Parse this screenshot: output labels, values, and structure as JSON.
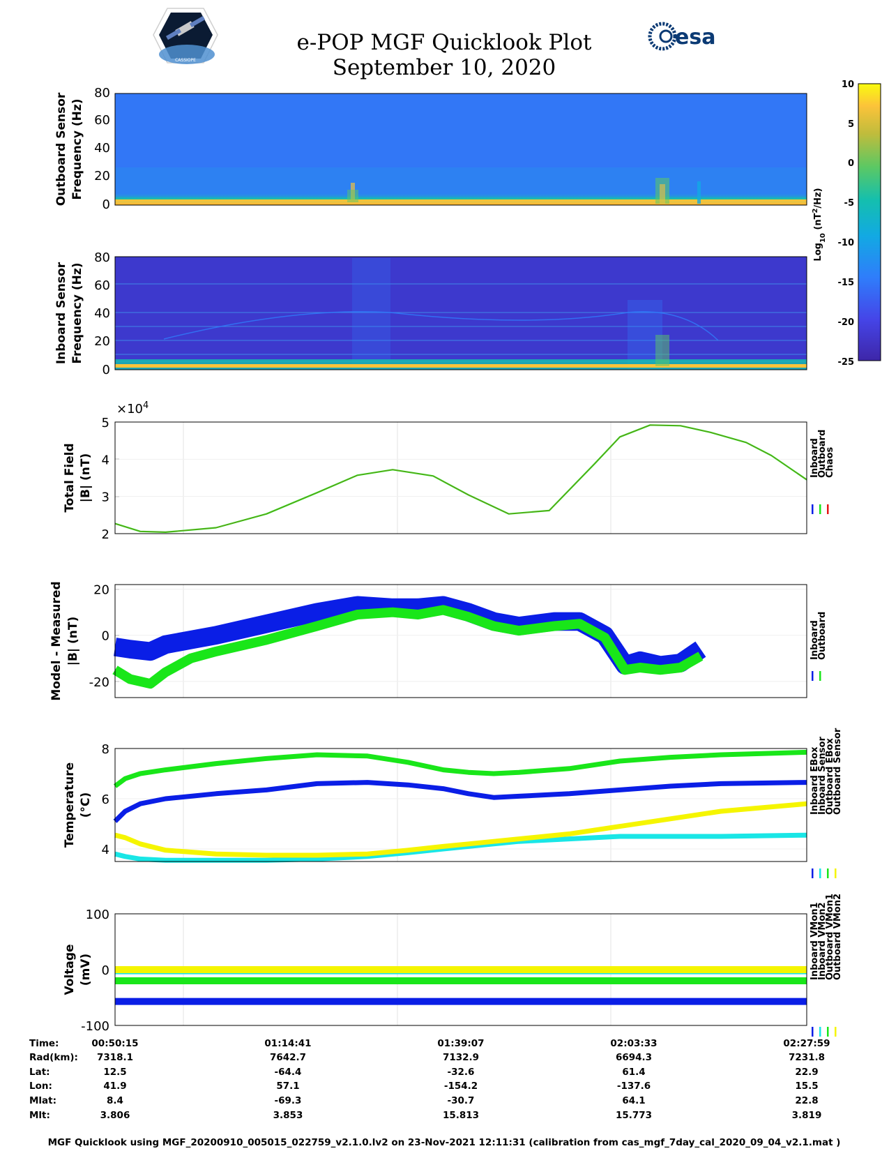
{
  "title": "e-POP MGF Quicklook Plot",
  "subtitle": "September 10, 2020",
  "logos": {
    "left_mission": "CASSIOPE",
    "right_agency": "esa"
  },
  "colors": {
    "inboard": "#0a1ee6",
    "outboard": "#19e619",
    "chaos": "#e61414",
    "inboard_sensor_temp": "#19e6e6",
    "outboard_sensor_temp": "#f5f500"
  },
  "colorbar": {
    "label_main": "Log",
    "label_sub": "10",
    "label_unit": " (nT",
    "label_sup": "2",
    "label_tail": "/Hz)",
    "ticks": [
      "10",
      "5",
      "0",
      "-5",
      "-10",
      "-15",
      "-20",
      "-25"
    ],
    "range": [
      -25,
      10
    ]
  },
  "spectrograms": [
    {
      "ylabel1": "Outboard Sensor",
      "ylabel2": "Frequency (Hz)",
      "ticks": [
        "80",
        "60",
        "40",
        "20",
        "0"
      ]
    },
    {
      "ylabel1": "Inboard Sensor",
      "ylabel2": "Frequency (Hz)",
      "ticks": [
        "80",
        "60",
        "40",
        "20",
        "0"
      ]
    }
  ],
  "chart_data": [
    {
      "type": "line",
      "id": "total_field",
      "ylabel1": "Total Field",
      "ylabel2": "|B| (nT)",
      "multiplier_base": "×10",
      "multiplier_exp": "4",
      "ylim": [
        2,
        5
      ],
      "yticks": [
        "5",
        "4",
        "3",
        "2"
      ],
      "legend": [
        "Inboard",
        "Outboard",
        "Chaos"
      ],
      "x_minutes": [
        0,
        5,
        10,
        20,
        30,
        40,
        48,
        55,
        63,
        70,
        78,
        86,
        95,
        100,
        106,
        112,
        118,
        125,
        130,
        137
      ],
      "series": [
        {
          "name": "Outboard",
          "values": [
            2.27,
            2.06,
            2.04,
            2.16,
            2.53,
            3.1,
            3.57,
            3.72,
            3.55,
            3.04,
            2.53,
            2.62,
            3.88,
            4.6,
            4.92,
            4.9,
            4.72,
            4.45,
            4.1,
            3.45
          ]
        }
      ]
    },
    {
      "type": "line",
      "id": "model_minus_measured",
      "ylabel1": "Model - Measured",
      "ylabel2": "|B| (nT)",
      "ylim": [
        -27,
        22
      ],
      "yticks": [
        "20",
        "0",
        "-20"
      ],
      "legend": [
        "Inboard",
        "Outboard"
      ],
      "x_minutes": [
        0,
        3,
        7,
        10,
        15,
        20,
        30,
        40,
        48,
        55,
        60,
        65,
        70,
        75,
        80,
        87,
        92,
        97,
        101,
        104,
        108,
        112,
        116
      ],
      "series": [
        {
          "name": "Inboard",
          "values": [
            -5,
            -6,
            -7,
            -4,
            -2,
            0,
            5,
            10,
            13,
            12,
            12,
            13,
            10,
            6,
            4,
            6,
            6,
            0,
            -13,
            -11,
            -13,
            -12,
            -6
          ]
        },
        {
          "name": "Outboard",
          "values": [
            -15,
            -19,
            -21,
            -16,
            -10,
            -7,
            -2,
            4,
            9,
            10,
            9,
            11,
            8,
            4,
            2,
            4,
            5,
            -1,
            -15,
            -14,
            -15,
            -14,
            -9
          ]
        }
      ]
    },
    {
      "type": "line",
      "id": "temperature",
      "ylabel1": "Temperature",
      "ylabel2": "(°C)",
      "ylim": [
        3.5,
        8
      ],
      "yticks": [
        "8",
        "6",
        "4"
      ],
      "legend": [
        "Inboard EBox",
        "Inboard Sensor",
        "Outboard EBox",
        "Outboard Sensor"
      ],
      "x_minutes": [
        0,
        2,
        5,
        10,
        20,
        30,
        40,
        50,
        58,
        65,
        70,
        75,
        80,
        90,
        100,
        110,
        120,
        137
      ],
      "series": [
        {
          "name": "Inboard EBox",
          "values": [
            5.1,
            5.5,
            5.8,
            6,
            6.2,
            6.35,
            6.6,
            6.65,
            6.55,
            6.4,
            6.2,
            6.05,
            6.1,
            6.2,
            6.35,
            6.5,
            6.6,
            6.65
          ]
        },
        {
          "name": "Inboard Sensor",
          "values": [
            3.8,
            3.7,
            3.6,
            3.55,
            3.55,
            3.55,
            3.6,
            3.7,
            3.85,
            4.0,
            4.1,
            4.2,
            4.3,
            4.4,
            4.5,
            4.5,
            4.5,
            4.55
          ]
        },
        {
          "name": "Outboard EBox",
          "values": [
            6.5,
            6.8,
            7.0,
            7.15,
            7.4,
            7.6,
            7.75,
            7.7,
            7.45,
            7.15,
            7.05,
            7.0,
            7.05,
            7.2,
            7.5,
            7.65,
            7.75,
            7.85
          ]
        },
        {
          "name": "Outboard Sensor",
          "values": [
            4.55,
            4.45,
            4.2,
            3.95,
            3.8,
            3.75,
            3.75,
            3.8,
            3.95,
            4.1,
            4.2,
            4.3,
            4.4,
            4.6,
            4.9,
            5.2,
            5.5,
            5.8
          ]
        }
      ]
    },
    {
      "type": "line",
      "id": "voltage",
      "ylabel1": "Voltage",
      "ylabel2": "(mV)",
      "ylim": [
        -100,
        100
      ],
      "yticks": [
        "100",
        "0",
        "-100"
      ],
      "legend": [
        "Inboard VMon1",
        "Inboard VMon2",
        "Outboard VMon1",
        "Outboard VMon2"
      ],
      "x_minutes": [
        0,
        137
      ],
      "series": [
        {
          "name": "Inboard VMon1",
          "values": [
            -57,
            -57
          ]
        },
        {
          "name": "Inboard VMon2",
          "values": [
            -2,
            -2
          ]
        },
        {
          "name": "Outboard VMon1",
          "values": [
            -20,
            -20
          ]
        },
        {
          "name": "Outboard VMon2",
          "values": [
            0,
            0
          ]
        }
      ]
    }
  ],
  "ephemeris": {
    "labels": [
      "Time:",
      "Rad(km):",
      "Lat:",
      "Lon:",
      "Mlat:",
      "Mlt:"
    ],
    "columns": [
      [
        "00:50:15",
        "7318.1",
        "12.5",
        "41.9",
        "8.4",
        "3.806"
      ],
      [
        "01:14:41",
        "7642.7",
        "-64.4",
        "57.1",
        "-69.3",
        "3.853"
      ],
      [
        "01:39:07",
        "7132.9",
        "-32.6",
        "-154.2",
        "-30.7",
        "15.813"
      ],
      [
        "02:03:33",
        "6694.3",
        "61.4",
        "-137.6",
        "64.1",
        "15.773"
      ],
      [
        "02:27:59",
        "7231.8",
        "22.9",
        "15.5",
        "22.8",
        "3.819"
      ]
    ]
  },
  "footer": "MGF Quicklook using MGF_20200910_005015_022759_v2.1.0.lv2 on 23-Nov-2021 12:11:31 (calibration from cas_mgf_7day_cal_2020_09_04_v2.1.mat )"
}
